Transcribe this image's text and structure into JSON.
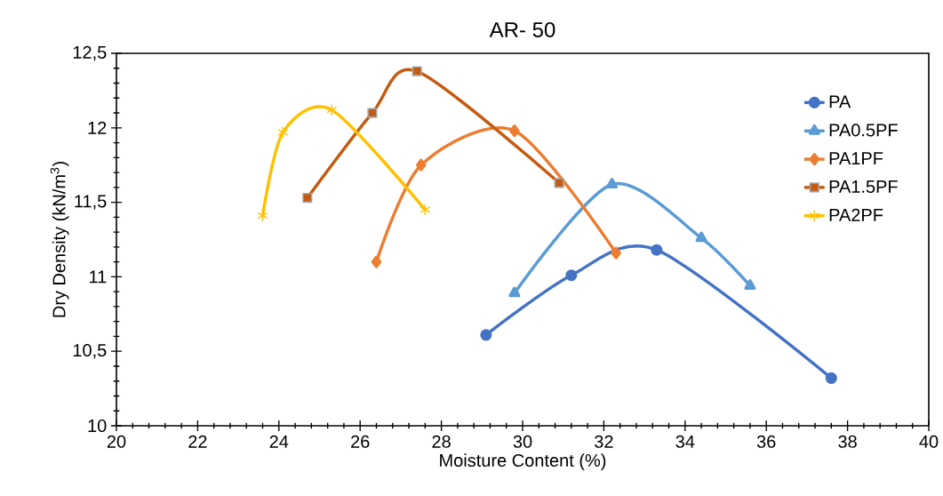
{
  "chart_data": {
    "type": "line",
    "title": "AR- 50",
    "xlabel": "Moisture Content (%)",
    "ylabel": "Dry Density (kN/m$^{3}$)",
    "xlim": [
      20,
      40
    ],
    "xticks": [
      20,
      22,
      24,
      26,
      28,
      30,
      32,
      34,
      36,
      38,
      40
    ],
    "ylim": [
      10,
      12.5
    ],
    "yticks": [
      10,
      {
        "value": 10.5,
        "label": "10,5"
      },
      11,
      {
        "value": 11.5,
        "label": "11,5"
      },
      12,
      {
        "value": 12.5,
        "label": "12,5"
      }
    ],
    "grid": false,
    "legend": "top right",
    "series": [
      {
        "name": "PA",
        "color": "#4472c4",
        "marker": "circle",
        "x": [
          29.1,
          31.2,
          33.3,
          37.6
        ],
        "values": [
          10.61,
          11.01,
          11.18,
          10.32
        ]
      },
      {
        "name": "PA0.5PF",
        "color": "#5b9bd5",
        "marker": "triangle",
        "x": [
          29.8,
          32.2,
          34.4,
          35.6
        ],
        "values": [
          10.89,
          11.62,
          11.26,
          10.94
        ]
      },
      {
        "name": "PA1PF",
        "color": "#ed7d31",
        "marker": "diamond",
        "x": [
          26.4,
          27.5,
          29.8,
          32.3
        ],
        "values": [
          11.1,
          11.75,
          11.98,
          11.16
        ]
      },
      {
        "name": "PA1.5PF",
        "color": "#c55a11",
        "marker": "square",
        "x": [
          24.7,
          26.3,
          27.4,
          30.9
        ],
        "values": [
          11.53,
          12.1,
          12.38,
          11.63
        ]
      },
      {
        "name": "PA2PF",
        "color": "#ffc000",
        "marker": "cross",
        "x": [
          23.6,
          24.1,
          25.3,
          27.6
        ],
        "values": [
          11.41,
          11.97,
          12.12,
          11.45
        ]
      }
    ]
  }
}
